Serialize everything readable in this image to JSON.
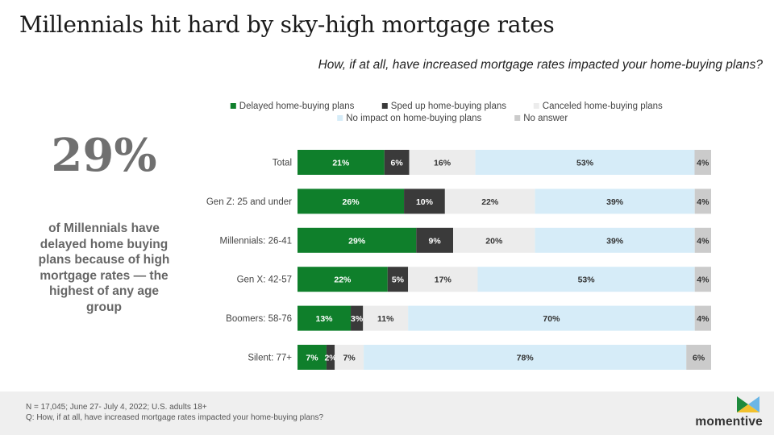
{
  "page": {
    "title": "Millennials hit hard by sky-high mortgage rates",
    "subtitle": "How, if at all, have increased mortgage rates impacted your home-buying plans?",
    "stat_value": "29%",
    "stat_text": "of Millennials have delayed home buying plans because of high mortgage rates — the highest of any age group",
    "footnote_1": "N = 17,045; June 27- July 4, 2022; U.S. adults 18+",
    "footnote_2": "Q: How, if at all, have increased mortgage rates impacted your home-buying plans?",
    "brand": "momentive"
  },
  "colors": {
    "delayed": "#0f7f2b",
    "sped_up": "#3a3a3a",
    "canceled": "#ececec",
    "no_impact": "#d6ecf8",
    "no_answer": "#cbcbcb",
    "footer_bg": "#efefef"
  },
  "chart_data": {
    "type": "bar",
    "orientation": "horizontal",
    "stacked": true,
    "legend_position": "top",
    "categories": [
      "Total",
      "Gen Z: 25 and under",
      "Millennials: 26-41",
      "Gen X: 42-57",
      "Boomers: 58-76",
      "Silent: 77+"
    ],
    "series": [
      {
        "name": "Delayed home-buying plans",
        "values": [
          21,
          26,
          29,
          22,
          13,
          7
        ]
      },
      {
        "name": "Sped up home-buying plans",
        "values": [
          6,
          10,
          9,
          5,
          3,
          2
        ]
      },
      {
        "name": "Canceled home-buying plans",
        "values": [
          16,
          22,
          20,
          17,
          11,
          7
        ]
      },
      {
        "name": "No impact on home-buying plans",
        "values": [
          53,
          39,
          39,
          53,
          70,
          78
        ]
      },
      {
        "name": "No answer",
        "values": [
          4,
          4,
          4,
          4,
          4,
          6
        ]
      }
    ],
    "data_label_suffix": "%"
  }
}
